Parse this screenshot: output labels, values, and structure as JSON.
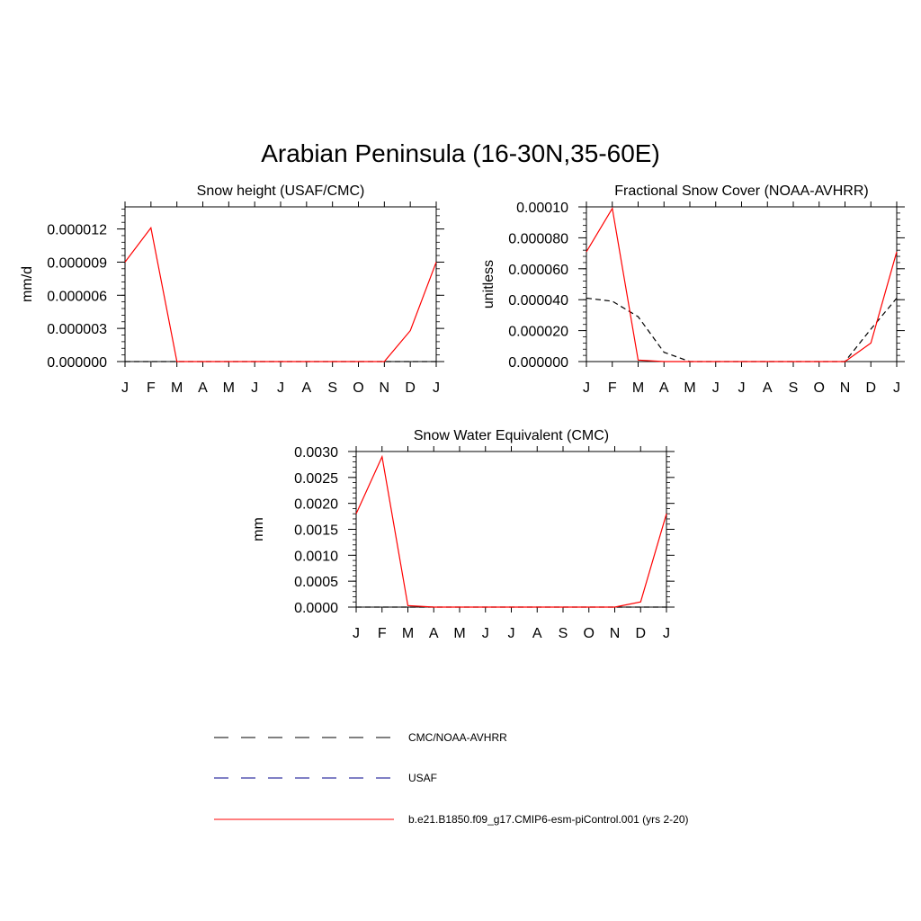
{
  "title": "Arabian Peninsula (16-30N,35-60E)",
  "months": [
    "J",
    "F",
    "M",
    "A",
    "M",
    "J",
    "J",
    "A",
    "S",
    "O",
    "N",
    "D",
    "J"
  ],
  "legend": [
    {
      "label": "CMC/NOAA-AVHRR",
      "color": "#000000",
      "dash": "long"
    },
    {
      "label": "USAF",
      "color": "#00008b",
      "dash": "long"
    },
    {
      "label": "b.e21.B1850.f09_g17.CMIP6-esm-piControl.001 (yrs 2-20)",
      "color": "#ff0000",
      "dash": "solid"
    }
  ],
  "chart_data": [
    {
      "type": "line",
      "title": "Snow height (USAF/CMC)",
      "ylabel": "mm/d",
      "ylim": [
        0,
        1.4e-05
      ],
      "yticks": [
        "0.000000",
        "0.000003",
        "0.000006",
        "0.000009",
        "0.000012"
      ],
      "ytick_values": [
        0,
        3e-06,
        6e-06,
        9e-06,
        1.2e-05
      ],
      "series": [
        {
          "color": "#ff0000",
          "dash": "solid",
          "values": [
            9e-06,
            1.21e-05,
            0.0,
            0.0,
            0.0,
            0.0,
            0.0,
            0.0,
            0.0,
            0.0,
            0.0,
            2.8e-06,
            9e-06
          ]
        },
        {
          "color": "#000000",
          "dash": "dashed",
          "values": [
            0,
            0,
            0,
            0,
            0,
            0,
            0,
            0,
            0,
            0,
            0,
            0,
            0
          ]
        }
      ]
    },
    {
      "type": "line",
      "title": "Fractional Snow Cover (NOAA-AVHRR)",
      "ylabel": "unitless",
      "ylim": [
        0,
        0.0001
      ],
      "yticks": [
        "0.000000",
        "0.000020",
        "0.000040",
        "0.000060",
        "0.000080",
        "0.00010"
      ],
      "ytick_values": [
        0,
        2e-05,
        4e-05,
        6e-05,
        8e-05,
        0.0001
      ],
      "series": [
        {
          "color": "#ff0000",
          "dash": "solid",
          "values": [
            7.1e-05,
            9.9e-05,
            1e-06,
            0.0,
            0.0,
            0.0,
            0.0,
            0.0,
            0.0,
            0.0,
            0.0,
            1.2e-05,
            7.1e-05
          ]
        },
        {
          "color": "#000000",
          "dash": "dashed",
          "values": [
            4.1e-05,
            3.9e-05,
            2.9e-05,
            6e-06,
            0.0,
            0.0,
            0.0,
            0.0,
            0.0,
            0.0,
            0.0,
            2.1e-05,
            4.1e-05
          ]
        }
      ]
    },
    {
      "type": "line",
      "title": "Snow Water Equivalent (CMC)",
      "ylabel": "mm",
      "ylim": [
        0,
        0.003
      ],
      "yticks": [
        "0.0000",
        "0.0005",
        "0.0010",
        "0.0015",
        "0.0020",
        "0.0025",
        "0.0030"
      ],
      "ytick_values": [
        0,
        0.0005,
        0.001,
        0.0015,
        0.002,
        0.0025,
        0.003
      ],
      "series": [
        {
          "color": "#ff0000",
          "dash": "solid",
          "values": [
            0.0018,
            0.0029,
            3e-05,
            0.0,
            0.0,
            0.0,
            0.0,
            0.0,
            0.0,
            0.0,
            0.0,
            0.0001,
            0.0018
          ]
        },
        {
          "color": "#000000",
          "dash": "dashed",
          "values": [
            0,
            0,
            0,
            0,
            0,
            0,
            0,
            0,
            0,
            0,
            0,
            0,
            0
          ]
        }
      ]
    }
  ]
}
